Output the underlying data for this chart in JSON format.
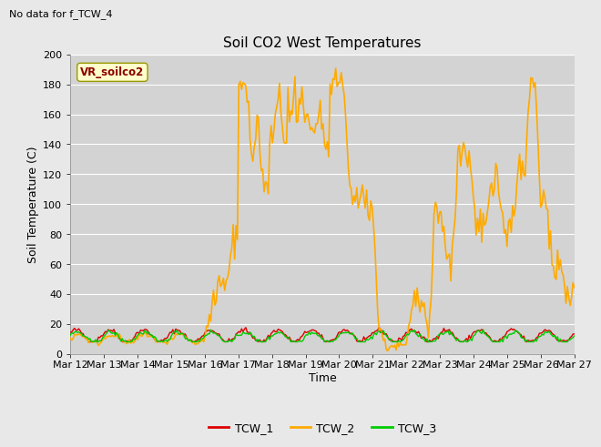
{
  "title": "Soil CO2 West Temperatures",
  "no_data_text": "No data for f_TCW_4",
  "ylabel": "Soil Temperature (C)",
  "xlabel": "Time",
  "ylim": [
    0,
    200
  ],
  "fig_bg_color": "#e8e8e8",
  "plot_bg_color": "#d3d3d3",
  "legend_bg_color": "#ffffff",
  "grid_color": "#ffffff",
  "tcw1_color": "#dd0000",
  "tcw2_color": "#ffaa00",
  "tcw3_color": "#00cc00",
  "legend_label1": "TCW_1",
  "legend_label2": "TCW_2",
  "legend_label3": "TCW_3",
  "vr_label": "VR_soilco2",
  "x_tick_labels": [
    "Mar 12",
    "Mar 13",
    "Mar 14",
    "Mar 15",
    "Mar 16",
    "Mar 17",
    "Mar 18",
    "Mar 19",
    "Mar 20",
    "Mar 21",
    "Mar 22",
    "Mar 23",
    "Mar 24",
    "Mar 25",
    "Mar 26",
    "Mar 27"
  ],
  "x_tick_positions": [
    0,
    24,
    48,
    72,
    96,
    120,
    144,
    168,
    192,
    216,
    240,
    264,
    288,
    312,
    336,
    360
  ],
  "yticks": [
    0,
    20,
    40,
    60,
    80,
    100,
    120,
    140,
    160,
    180,
    200
  ]
}
